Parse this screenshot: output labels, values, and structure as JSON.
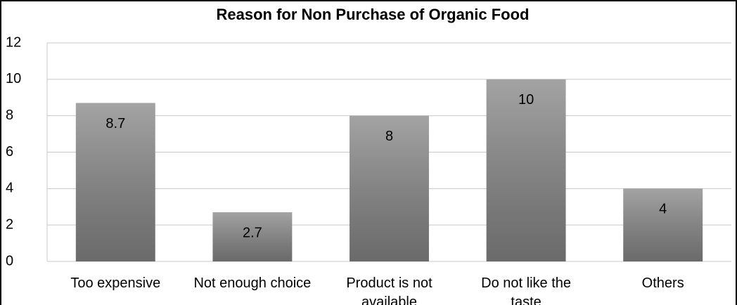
{
  "chart_data": {
    "type": "bar",
    "title": "Reason for Non Purchase of Organic Food",
    "categories": [
      "Too expensive",
      "Not enough choice",
      "Product is not available",
      "Do not like the taste",
      "Others"
    ],
    "values": [
      8.7,
      2.7,
      8,
      10,
      4
    ],
    "color": "#858585",
    "ylim": [
      0,
      12
    ],
    "yticks": [
      0,
      2,
      4,
      6,
      8,
      10,
      12
    ],
    "grid": true
  }
}
